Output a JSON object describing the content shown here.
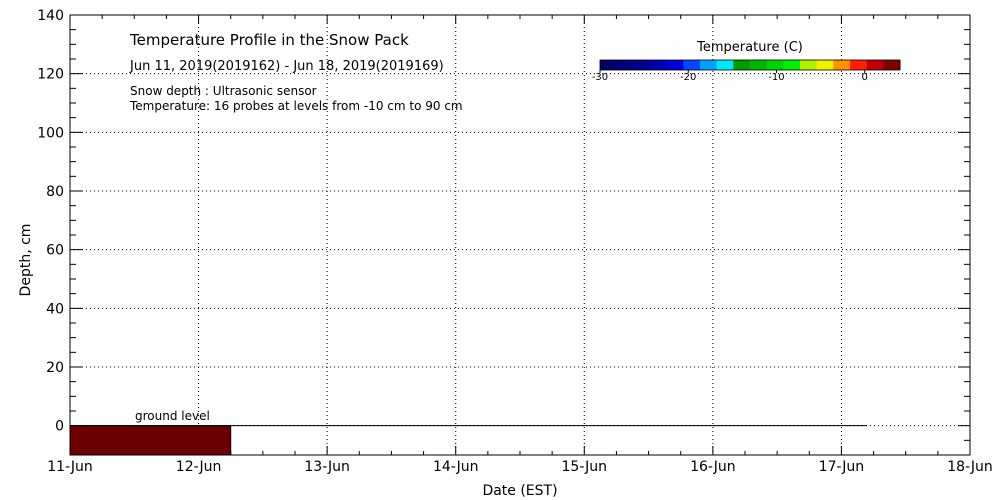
{
  "chart_data": {
    "type": "heatmap",
    "title": "Temperature Profile in the Snow Pack",
    "subtitle": "Jun 11, 2019(2019162) - Jun 18, 2019(2019169)",
    "notes": [
      "Snow depth : Ultrasonic sensor",
      "Temperature: 16 probes at levels from -10 cm to 90 cm"
    ],
    "xlabel": "Date (EST)",
    "ylabel": "Depth, cm",
    "x_ticks": [
      "11-Jun",
      "12-Jun",
      "13-Jun",
      "14-Jun",
      "15-Jun",
      "16-Jun",
      "17-Jun",
      "18-Jun"
    ],
    "y_ticks": [
      0,
      20,
      40,
      60,
      80,
      100,
      120,
      140
    ],
    "ylim": [
      -10,
      140
    ],
    "xlim_days": [
      0,
      7
    ],
    "grid": true,
    "annotation": "ground level",
    "ground_level_line": {
      "y": 0,
      "x_start_day": 0,
      "x_end_day": 6.2
    },
    "temperature_block": {
      "x_start_day": 0,
      "x_end_day": 1.25,
      "y_start": -10,
      "y_end": 0,
      "color": "#6b0000"
    },
    "colorbar": {
      "title": "Temperature (C)",
      "ticks": [
        -30,
        -20,
        -10,
        0
      ],
      "min": -30,
      "max": 4,
      "colors": [
        "#000066",
        "#00007a",
        "#00008e",
        "#0000b0",
        "#0000d8",
        "#0048ff",
        "#00a0ff",
        "#00e8ff",
        "#009900",
        "#00b800",
        "#00d400",
        "#00f000",
        "#b0f000",
        "#f0f000",
        "#ff9000",
        "#ff2000",
        "#c00000",
        "#800000"
      ],
      "position": "top-right"
    }
  }
}
